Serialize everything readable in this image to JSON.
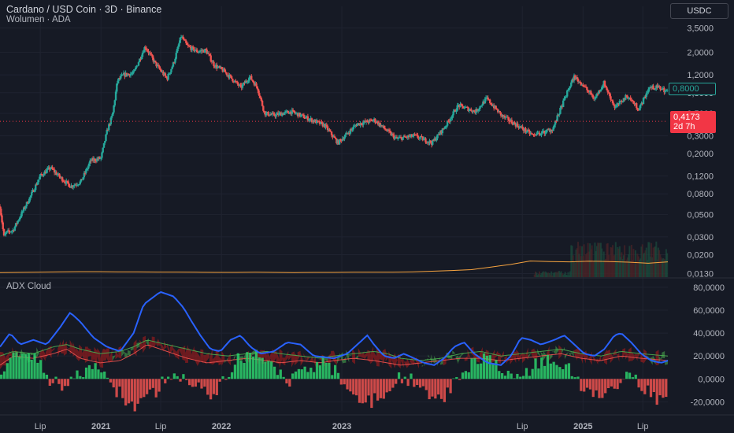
{
  "header": {
    "title": "Cardano / USD Coin · 3D · Binance",
    "volume_label": "Wolumen · ADA",
    "indicator_label": "ADX Cloud",
    "currency_button": "USDC"
  },
  "price_tags": {
    "current": "0,8000",
    "last_price": "0,4173",
    "last_countdown": "2d 7h"
  },
  "colors": {
    "background": "#161a25",
    "up": "#26a69a",
    "down": "#ef5350",
    "adx_line": "#2962ff",
    "volume_ma": "#f7a440",
    "cloud_green": "#4caf50",
    "cloud_red": "#b71c1c",
    "hist_green": "#2bd16c",
    "hist_red": "#ef5350"
  },
  "chart_data": [
    {
      "type": "candlestick",
      "title": "Cardano / USD Coin · 3D · Binance",
      "scale": "log",
      "ylim": [
        0.012,
        4.0
      ],
      "y_ticks": [
        "3,5000",
        "2,0000",
        "1,2000",
        "0,8000",
        "0,5000",
        "0,3000",
        "0,2000",
        "0,1200",
        "0,0800",
        "0,0500",
        "0,0300",
        "0,0200",
        "0,0130"
      ],
      "y_tick_values": [
        3.5,
        2.0,
        1.2,
        0.8,
        0.5,
        0.3,
        0.2,
        0.12,
        0.08,
        0.05,
        0.03,
        0.02,
        0.013
      ],
      "x_ticks": [
        "Lip",
        "2021",
        "Lip",
        "2022",
        "2023",
        "Lip",
        "2025",
        "Lip"
      ],
      "x_tick_dates": [
        "2020-07-01",
        "2021-01-01",
        "2021-07-01",
        "2022-01-01",
        "2023-01-01",
        "2024-07-01",
        "2025-01-01",
        "2025-07-01"
      ],
      "x_range": [
        "2020-03-01",
        "2025-09-15"
      ],
      "close_path": [
        [
          "2020-03-01",
          0.06
        ],
        [
          "2020-03-13",
          0.03
        ],
        [
          "2020-03-20",
          0.033
        ],
        [
          "2020-04-10",
          0.035
        ],
        [
          "2020-05-01",
          0.048
        ],
        [
          "2020-06-01",
          0.075
        ],
        [
          "2020-07-01",
          0.12
        ],
        [
          "2020-08-01",
          0.145
        ],
        [
          "2020-09-01",
          0.115
        ],
        [
          "2020-10-01",
          0.095
        ],
        [
          "2020-11-01",
          0.105
        ],
        [
          "2020-12-01",
          0.17
        ],
        [
          "2021-01-01",
          0.18
        ],
        [
          "2021-01-20",
          0.34
        ],
        [
          "2021-02-05",
          0.48
        ],
        [
          "2021-02-20",
          1.05
        ],
        [
          "2021-03-10",
          1.2
        ],
        [
          "2021-04-10",
          1.25
        ],
        [
          "2021-05-15",
          2.3
        ],
        [
          "2021-06-15",
          1.55
        ],
        [
          "2021-07-20",
          1.1
        ],
        [
          "2021-08-10",
          1.6
        ],
        [
          "2021-09-01",
          2.9
        ],
        [
          "2021-09-20",
          2.3
        ],
        [
          "2021-10-20",
          2.05
        ],
        [
          "2021-11-15",
          2.1
        ],
        [
          "2021-12-10",
          1.5
        ],
        [
          "2022-01-10",
          1.3
        ],
        [
          "2022-03-01",
          0.9
        ],
        [
          "2022-03-28",
          1.15
        ],
        [
          "2022-04-20",
          0.9
        ],
        [
          "2022-05-12",
          0.5
        ],
        [
          "2022-06-10",
          0.48
        ],
        [
          "2022-08-01",
          0.52
        ],
        [
          "2022-10-01",
          0.43
        ],
        [
          "2022-11-10",
          0.38
        ],
        [
          "2022-12-20",
          0.255
        ],
        [
          "2023-02-15",
          0.39
        ],
        [
          "2023-04-10",
          0.43
        ],
        [
          "2023-06-15",
          0.28
        ],
        [
          "2023-08-10",
          0.3
        ],
        [
          "2023-10-01",
          0.255
        ],
        [
          "2023-11-10",
          0.37
        ],
        [
          "2023-12-20",
          0.6
        ],
        [
          "2024-02-10",
          0.52
        ],
        [
          "2024-03-15",
          0.7
        ],
        [
          "2024-05-01",
          0.47
        ],
        [
          "2024-08-05",
          0.3
        ],
        [
          "2024-10-01",
          0.35
        ],
        [
          "2024-11-20",
          0.9
        ],
        [
          "2024-12-05",
          1.15
        ],
        [
          "2025-01-01",
          0.95
        ],
        [
          "2025-02-05",
          0.7
        ],
        [
          "2025-03-05",
          1.0
        ],
        [
          "2025-04-08",
          0.57
        ],
        [
          "2025-05-15",
          0.75
        ],
        [
          "2025-06-20",
          0.55
        ],
        [
          "2025-07-20",
          0.9
        ],
        [
          "2025-08-20",
          0.9
        ],
        [
          "2025-09-10",
          0.83
        ]
      ],
      "current_price": 0.8,
      "last_price_line": 0.4173
    },
    {
      "type": "line",
      "title": "Wolumen · ADA",
      "series": [
        {
          "values": [
            0.08,
            0.09,
            0.1,
            0.12,
            0.13,
            0.13,
            0.12,
            0.12,
            0.11,
            0.11,
            0.1,
            0.09,
            0.09,
            0.1,
            0.09,
            0.08,
            0.09,
            0.09,
            0.1,
            0.1,
            0.1,
            0.12,
            0.16,
            0.2,
            0.25,
            0.4,
            0.55,
            0.75,
            0.72,
            0.7,
            0.74,
            0.72,
            0.68,
            0.62,
            0.7
          ]
        }
      ]
    },
    {
      "type": "area",
      "title": "ADX Cloud",
      "ylim": [
        -28,
        82
      ],
      "y_ticks": [
        "80,0000",
        "60,0000",
        "40,0000",
        "20,0000",
        "0,0000",
        "-20,0000"
      ],
      "y_tick_values": [
        80,
        60,
        40,
        20,
        0,
        -20
      ],
      "series": [
        {
          "values": [
            [
              0,
              28
            ],
            [
              0.015,
              40
            ],
            [
              0.03,
              30
            ],
            [
              0.05,
              34
            ],
            [
              0.07,
              30
            ],
            [
              0.09,
              45
            ],
            [
              0.105,
              58
            ],
            [
              0.12,
              50
            ],
            [
              0.14,
              36
            ],
            [
              0.16,
              28
            ],
            [
              0.18,
              24
            ],
            [
              0.2,
              40
            ],
            [
              0.215,
              65
            ],
            [
              0.24,
              76
            ],
            [
              0.26,
              72
            ],
            [
              0.275,
              62
            ],
            [
              0.285,
              52
            ],
            [
              0.3,
              38
            ],
            [
              0.315,
              26
            ],
            [
              0.33,
              24
            ],
            [
              0.345,
              34
            ],
            [
              0.36,
              38
            ],
            [
              0.375,
              28
            ],
            [
              0.39,
              22
            ],
            [
              0.41,
              24
            ],
            [
              0.43,
              32
            ],
            [
              0.45,
              30
            ],
            [
              0.47,
              20
            ],
            [
              0.5,
              18
            ],
            [
              0.52,
              22
            ],
            [
              0.535,
              30
            ],
            [
              0.55,
              38
            ],
            [
              0.56,
              30
            ],
            [
              0.575,
              20
            ],
            [
              0.59,
              18
            ],
            [
              0.605,
              22
            ],
            [
              0.62,
              18
            ],
            [
              0.635,
              14
            ],
            [
              0.65,
              12
            ],
            [
              0.665,
              18
            ],
            [
              0.68,
              28
            ],
            [
              0.695,
              32
            ],
            [
              0.71,
              22
            ],
            [
              0.73,
              14
            ],
            [
              0.75,
              12
            ],
            [
              0.765,
              20
            ],
            [
              0.78,
              36
            ],
            [
              0.795,
              34
            ],
            [
              0.81,
              30
            ],
            [
              0.83,
              34
            ],
            [
              0.845,
              38
            ],
            [
              0.86,
              30
            ],
            [
              0.875,
              22
            ],
            [
              0.89,
              20
            ],
            [
              0.905,
              26
            ],
            [
              0.92,
              38
            ],
            [
              0.93,
              40
            ],
            [
              0.945,
              32
            ],
            [
              0.96,
              22
            ],
            [
              0.975,
              16
            ],
            [
              0.99,
              14
            ],
            [
              1.0,
              16
            ]
          ]
        },
        {
          "values": [
            [
              0,
              20
            ],
            [
              0.02,
              24
            ],
            [
              0.05,
              22
            ],
            [
              0.08,
              28
            ],
            [
              0.1,
              30
            ],
            [
              0.12,
              26
            ],
            [
              0.15,
              22
            ],
            [
              0.18,
              24
            ],
            [
              0.2,
              28
            ],
            [
              0.22,
              34
            ],
            [
              0.25,
              30
            ],
            [
              0.28,
              26
            ],
            [
              0.31,
              22
            ],
            [
              0.34,
              20
            ],
            [
              0.37,
              22
            ],
            [
              0.4,
              24
            ],
            [
              0.42,
              22
            ],
            [
              0.45,
              20
            ],
            [
              0.48,
              18
            ],
            [
              0.5,
              20
            ],
            [
              0.53,
              22
            ],
            [
              0.56,
              24
            ],
            [
              0.58,
              22
            ],
            [
              0.6,
              18
            ],
            [
              0.63,
              16
            ],
            [
              0.66,
              18
            ],
            [
              0.69,
              22
            ],
            [
              0.72,
              24
            ],
            [
              0.75,
              20
            ],
            [
              0.78,
              22
            ],
            [
              0.81,
              24
            ],
            [
              0.84,
              26
            ],
            [
              0.87,
              22
            ],
            [
              0.9,
              20
            ],
            [
              0.93,
              24
            ],
            [
              0.96,
              22
            ],
            [
              1.0,
              20
            ]
          ]
        },
        {
          "values": [
            [
              0,
              12
            ],
            [
              0.02,
              20
            ],
            [
              0.05,
              18
            ],
            [
              0.08,
              22
            ],
            [
              0.1,
              26
            ],
            [
              0.12,
              18
            ],
            [
              0.15,
              14
            ],
            [
              0.18,
              16
            ],
            [
              0.2,
              22
            ],
            [
              0.22,
              30
            ],
            [
              0.25,
              24
            ],
            [
              0.28,
              18
            ],
            [
              0.31,
              14
            ],
            [
              0.34,
              16
            ],
            [
              0.37,
              18
            ],
            [
              0.4,
              16
            ],
            [
              0.42,
              14
            ],
            [
              0.45,
              16
            ],
            [
              0.48,
              14
            ],
            [
              0.5,
              16
            ],
            [
              0.53,
              18
            ],
            [
              0.56,
              16
            ],
            [
              0.58,
              14
            ],
            [
              0.6,
              12
            ],
            [
              0.63,
              14
            ],
            [
              0.66,
              16
            ],
            [
              0.69,
              18
            ],
            [
              0.72,
              18
            ],
            [
              0.75,
              16
            ],
            [
              0.78,
              18
            ],
            [
              0.81,
              20
            ],
            [
              0.84,
              22
            ],
            [
              0.87,
              18
            ],
            [
              0.9,
              16
            ],
            [
              0.93,
              20
            ],
            [
              0.96,
              18
            ],
            [
              1.0,
              16
            ]
          ]
        }
      ]
    }
  ]
}
